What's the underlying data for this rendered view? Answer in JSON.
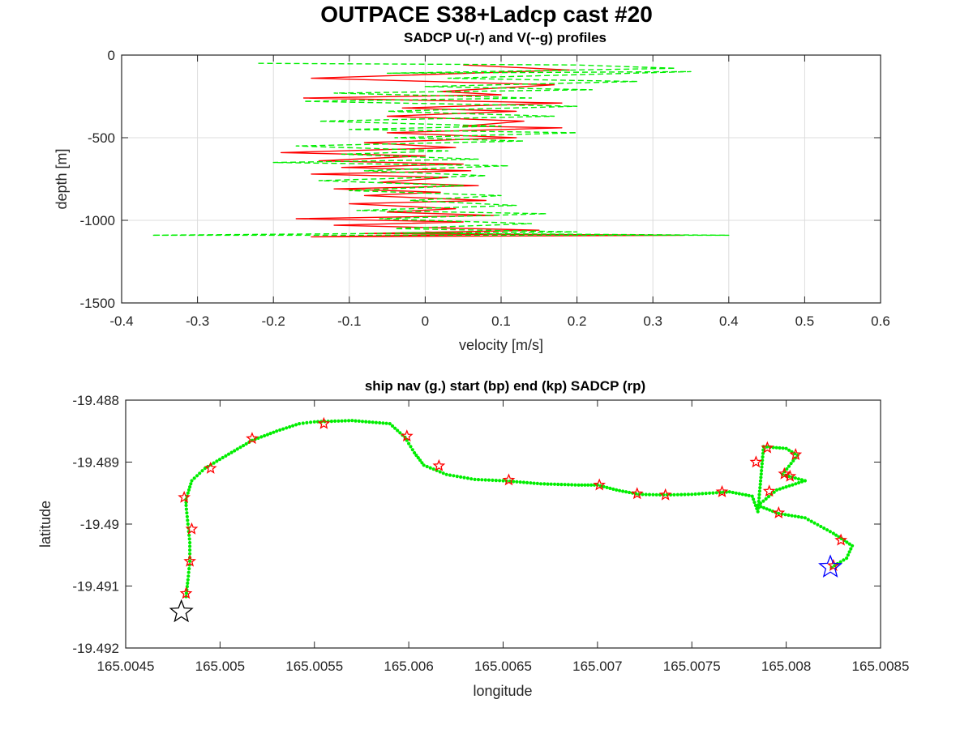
{
  "figure": {
    "title": "OUTPACE S38+Ladcp cast #20"
  },
  "chart_data": [
    {
      "type": "line",
      "title": "SADCP U(-r) and V(--g) profiles",
      "xlabel": "velocity [m/s]",
      "ylabel": "depth [m]",
      "xlim": [
        -0.4,
        0.6
      ],
      "ylim": [
        -1500,
        0
      ],
      "xticks": [
        "-0.4",
        "-0.3",
        "-0.2",
        "-0.1",
        "0",
        "0.1",
        "0.2",
        "0.3",
        "0.4",
        "0.5",
        "0.6"
      ],
      "yticks": [
        "0",
        "-500",
        "-1000",
        "-1500"
      ],
      "grid": true,
      "series": [
        {
          "name": "U",
          "style": "solid",
          "color": "#ff0000",
          "points": [
            [
              0.05,
              -60
            ],
            [
              0.19,
              -90
            ],
            [
              -0.15,
              -140
            ],
            [
              0.17,
              -180
            ],
            [
              0.02,
              -220
            ],
            [
              0.1,
              -240
            ],
            [
              -0.16,
              -260
            ],
            [
              0.18,
              -290
            ],
            [
              -0.03,
              -320
            ],
            [
              0.12,
              -340
            ],
            [
              -0.05,
              -370
            ],
            [
              0.13,
              -400
            ],
            [
              0.05,
              -430
            ],
            [
              0.18,
              -440
            ],
            [
              -0.05,
              -470
            ],
            [
              0.12,
              -500
            ],
            [
              -0.08,
              -530
            ],
            [
              0.04,
              -560
            ],
            [
              -0.19,
              -590
            ],
            [
              0.0,
              -610
            ],
            [
              -0.14,
              -640
            ],
            [
              0.05,
              -660
            ],
            [
              -0.11,
              -680
            ],
            [
              0.06,
              -700
            ],
            [
              -0.15,
              -720
            ],
            [
              0.03,
              -740
            ],
            [
              -0.06,
              -770
            ],
            [
              0.07,
              -790
            ],
            [
              -0.12,
              -810
            ],
            [
              0.02,
              -830
            ],
            [
              -0.08,
              -850
            ],
            [
              0.08,
              -880
            ],
            [
              -0.1,
              -900
            ],
            [
              0.04,
              -930
            ],
            [
              -0.05,
              -950
            ],
            [
              0.09,
              -970
            ],
            [
              -0.17,
              -990
            ],
            [
              0.05,
              -1010
            ],
            [
              -0.12,
              -1030
            ],
            [
              0.15,
              -1060
            ],
            [
              -0.08,
              -1080
            ],
            [
              0.34,
              -1090
            ],
            [
              -0.15,
              -1100
            ],
            [
              0.08,
              -1085
            ],
            [
              0.0,
              -1070
            ]
          ]
        },
        {
          "name": "V",
          "style": "dashed",
          "color": "#00ee00",
          "points": [
            [
              -0.22,
              -50
            ],
            [
              0.2,
              -60
            ],
            [
              0.33,
              -80
            ],
            [
              -0.05,
              -110
            ],
            [
              0.35,
              -100
            ],
            [
              0.03,
              -140
            ],
            [
              0.28,
              -160
            ],
            [
              0.0,
              -190
            ],
            [
              0.22,
              -210
            ],
            [
              -0.12,
              -230
            ],
            [
              0.14,
              -260
            ],
            [
              -0.16,
              -280
            ],
            [
              0.2,
              -310
            ],
            [
              -0.05,
              -340
            ],
            [
              0.17,
              -370
            ],
            [
              -0.14,
              -400
            ],
            [
              0.1,
              -430
            ],
            [
              -0.1,
              -450
            ],
            [
              0.2,
              -470
            ],
            [
              -0.04,
              -500
            ],
            [
              0.13,
              -520
            ],
            [
              -0.17,
              -550
            ],
            [
              0.03,
              -580
            ],
            [
              -0.11,
              -600
            ],
            [
              0.07,
              -630
            ],
            [
              -0.2,
              -650
            ],
            [
              0.11,
              -670
            ],
            [
              -0.08,
              -700
            ],
            [
              0.08,
              -730
            ],
            [
              -0.14,
              -760
            ],
            [
              0.05,
              -790
            ],
            [
              -0.1,
              -820
            ],
            [
              0.1,
              -850
            ],
            [
              -0.02,
              -880
            ],
            [
              0.12,
              -910
            ],
            [
              -0.09,
              -940
            ],
            [
              0.16,
              -960
            ],
            [
              -0.06,
              -990
            ],
            [
              0.14,
              -1020
            ],
            [
              -0.04,
              -1050
            ],
            [
              0.2,
              -1070
            ],
            [
              -0.36,
              -1090
            ],
            [
              0.4,
              -1090
            ],
            [
              0.05,
              -1080
            ],
            [
              -0.03,
              -1075
            ]
          ]
        }
      ]
    },
    {
      "type": "scatter",
      "title": "ship nav (g.) start (bp) end (kp) SADCP (rp)",
      "xlabel": "longitude",
      "ylabel": "latitude",
      "xlim": [
        165.0045,
        165.0085
      ],
      "ylim": [
        -19.492,
        -19.488
      ],
      "xticks": [
        "165.0045",
        "165.005",
        "165.0055",
        "165.006",
        "165.0065",
        "165.007",
        "165.0075",
        "165.008",
        "165.0085"
      ],
      "yticks": [
        "-19.488",
        "-19.489",
        "-19.49",
        "-19.491",
        "-19.492"
      ],
      "grid": false,
      "colors": {
        "nav": "#00ee00",
        "sadcp": "#ff0000",
        "start": "#0000ff",
        "end": "#000000"
      },
      "nav_track": [
        [
          165.00482,
          -19.49117
        ],
        [
          165.00483,
          -19.4909
        ],
        [
          165.00484,
          -19.4906
        ],
        [
          165.00484,
          -19.4903
        ],
        [
          165.00483,
          -19.49
        ],
        [
          165.00482,
          -19.4897
        ],
        [
          165.00482,
          -19.4896
        ],
        [
          165.00485,
          -19.4893
        ],
        [
          165.00492,
          -19.4891
        ],
        [
          165.00503,
          -19.4889
        ],
        [
          165.00517,
          -19.48865
        ],
        [
          165.0053,
          -19.4885
        ],
        [
          165.00542,
          -19.48838
        ],
        [
          165.0055,
          -19.48835
        ],
        [
          165.0057,
          -19.48833
        ],
        [
          165.0059,
          -19.48838
        ],
        [
          165.00598,
          -19.4886
        ],
        [
          165.00603,
          -19.48885
        ],
        [
          165.00608,
          -19.48905
        ],
        [
          165.0062,
          -19.4892
        ],
        [
          165.00635,
          -19.48928
        ],
        [
          165.0065,
          -19.4893
        ],
        [
          165.0067,
          -19.48935
        ],
        [
          165.0069,
          -19.48937
        ],
        [
          165.007,
          -19.48937
        ],
        [
          165.0071,
          -19.48945
        ],
        [
          165.00722,
          -19.48952
        ],
        [
          165.00735,
          -19.48953
        ],
        [
          165.0075,
          -19.48952
        ],
        [
          165.00765,
          -19.48949
        ],
        [
          165.0077,
          -19.48948
        ],
        [
          165.00782,
          -19.48955
        ],
        [
          165.00785,
          -19.4898
        ],
        [
          165.00788,
          -19.48875
        ],
        [
          165.008,
          -19.48878
        ],
        [
          165.00806,
          -19.48889
        ],
        [
          165.00798,
          -19.4892
        ],
        [
          165.0081,
          -19.4893
        ],
        [
          165.00795,
          -19.48945
        ],
        [
          165.00785,
          -19.4897
        ],
        [
          165.00796,
          -19.48983
        ],
        [
          165.0081,
          -19.4899
        ],
        [
          165.00825,
          -19.49015
        ],
        [
          165.00835,
          -19.49035
        ],
        [
          165.00832,
          -19.49055
        ],
        [
          165.00824,
          -19.4907
        ]
      ],
      "sadcp_points": [
        [
          165.00482,
          -19.49112
        ],
        [
          165.00484,
          -19.4906
        ],
        [
          165.00485,
          -19.49008
        ],
        [
          165.00481,
          -19.48957
        ],
        [
          165.00495,
          -19.4891
        ],
        [
          165.00517,
          -19.48862
        ],
        [
          165.00555,
          -19.48838
        ],
        [
          165.00599,
          -19.48858
        ],
        [
          165.00616,
          -19.48906
        ],
        [
          165.00653,
          -19.48929
        ],
        [
          165.00701,
          -19.48937
        ],
        [
          165.00721,
          -19.48951
        ],
        [
          165.00736,
          -19.48953
        ],
        [
          165.00766,
          -19.48948
        ],
        [
          165.00784,
          -19.489
        ],
        [
          165.0079,
          -19.48877
        ],
        [
          165.00805,
          -19.48888
        ],
        [
          165.00799,
          -19.48919
        ],
        [
          165.00802,
          -19.48923
        ],
        [
          165.00791,
          -19.48947
        ],
        [
          165.00796,
          -19.48982
        ],
        [
          165.00829,
          -19.49026
        ],
        [
          165.00825,
          -19.49067
        ]
      ],
      "start": [
        165.008234,
        -19.490696
      ],
      "end": [
        165.004795,
        -19.491418
      ]
    }
  ]
}
